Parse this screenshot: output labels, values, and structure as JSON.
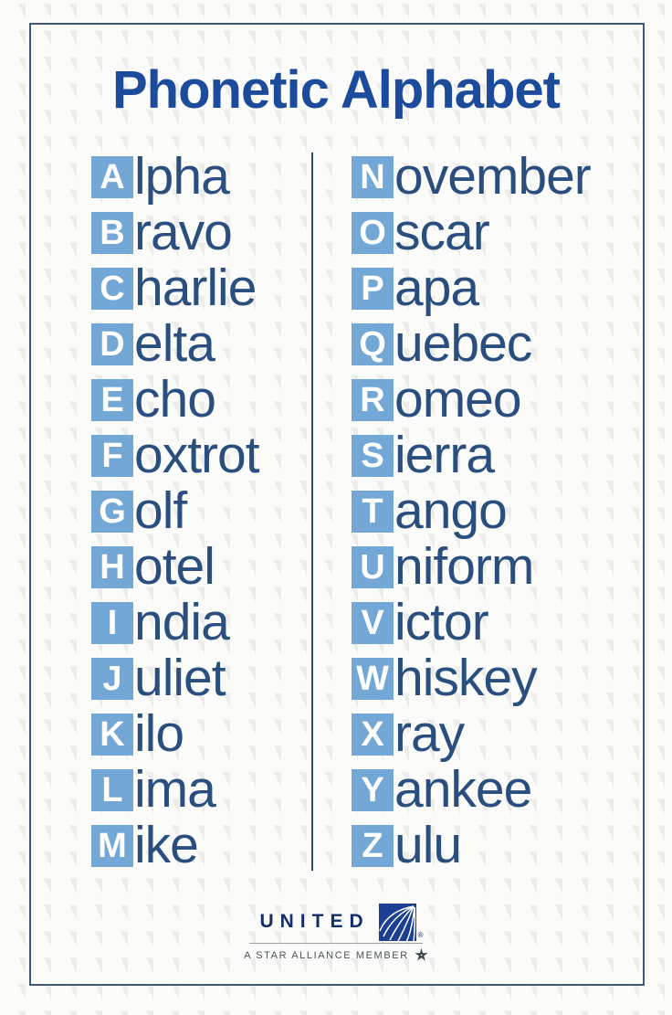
{
  "title": "Phonetic Alphabet",
  "columns": {
    "left": [
      {
        "letter": "A",
        "rest": "lpha",
        "word": "Alpha"
      },
      {
        "letter": "B",
        "rest": "ravo",
        "word": "Bravo"
      },
      {
        "letter": "C",
        "rest": "harlie",
        "word": "Charlie"
      },
      {
        "letter": "D",
        "rest": "elta",
        "word": "Delta"
      },
      {
        "letter": "E",
        "rest": "cho",
        "word": "Echo"
      },
      {
        "letter": "F",
        "rest": "oxtrot",
        "word": "Foxtrot"
      },
      {
        "letter": "G",
        "rest": "olf",
        "word": "Golf"
      },
      {
        "letter": "H",
        "rest": "otel",
        "word": "Hotel"
      },
      {
        "letter": "I",
        "rest": "ndia",
        "word": "India"
      },
      {
        "letter": "J",
        "rest": "uliet",
        "word": "Juliet"
      },
      {
        "letter": "K",
        "rest": "ilo",
        "word": "Kilo"
      },
      {
        "letter": "L",
        "rest": "ima",
        "word": "Lima"
      },
      {
        "letter": "M",
        "rest": "ike",
        "word": "Mike"
      }
    ],
    "right": [
      {
        "letter": "N",
        "rest": "ovember",
        "word": "November"
      },
      {
        "letter": "O",
        "rest": "scar",
        "word": "Oscar"
      },
      {
        "letter": "P",
        "rest": "apa",
        "word": "Papa"
      },
      {
        "letter": "Q",
        "rest": "uebec",
        "word": "Quebec"
      },
      {
        "letter": "R",
        "rest": "omeo",
        "word": "Romeo"
      },
      {
        "letter": "S",
        "rest": "ierra",
        "word": "Sierra"
      },
      {
        "letter": "T",
        "rest": "ango",
        "word": "Tango"
      },
      {
        "letter": "U",
        "rest": "niform",
        "word": "Uniform"
      },
      {
        "letter": "V",
        "rest": "ictor",
        "word": "Victor"
      },
      {
        "letter": "W",
        "rest": "hiskey",
        "word": "Whiskey"
      },
      {
        "letter": "X",
        "rest": "ray",
        "word": "Xray"
      },
      {
        "letter": "Y",
        "rest": "ankee",
        "word": "Yankee"
      },
      {
        "letter": "Z",
        "rest": "ulu",
        "word": "Zulu"
      }
    ]
  },
  "footer": {
    "brand": "UNITED",
    "registered_mark": "®",
    "tagline": "A STAR ALLIANCE MEMBER"
  },
  "icons": {
    "globe": "united-globe-icon",
    "star": "star-alliance-star-icon"
  },
  "colors": {
    "title_blue": "#1c4b9c",
    "letter_box_blue": "#72a7d6",
    "word_navy": "#2a4f7e",
    "divider_navy": "#2f4d6e",
    "frame_border": "#40587a",
    "brand_navy": "#14306b",
    "globe_square_blue": "#1c3f94",
    "tagline_gray": "#4a525c",
    "background": "#fbfbf9",
    "pattern_gray": "#ececea"
  }
}
